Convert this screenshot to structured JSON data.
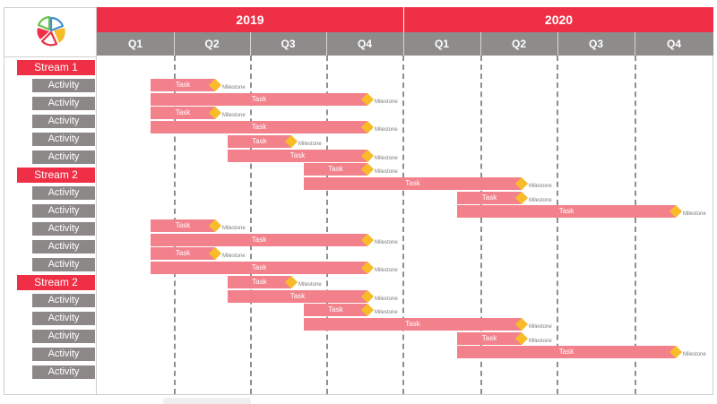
{
  "timeline": {
    "years": [
      "2019",
      "2020"
    ],
    "quarters": [
      "Q1",
      "Q2",
      "Q3",
      "Q4",
      "Q1",
      "Q2",
      "Q3",
      "Q4"
    ]
  },
  "logo": {
    "icon": "pie-chart-logo",
    "colors": [
      "#ee2f46",
      "#f8bc2a",
      "#3f8fd2",
      "#6cc04a"
    ]
  },
  "colors": {
    "accent": "#ee2f46",
    "row_label": "#8c8888",
    "task_bar": "#f2818c",
    "milestone": "#f8bc2a"
  },
  "rows": [
    {
      "type": "stream",
      "label": "Stream 1"
    },
    {
      "type": "activity",
      "label": "Activity"
    },
    {
      "type": "activity",
      "label": "Activity"
    },
    {
      "type": "activity",
      "label": "Activity"
    },
    {
      "type": "activity",
      "label": "Activity"
    },
    {
      "type": "activity",
      "label": "Activity"
    },
    {
      "type": "stream",
      "label": "Stream 2"
    },
    {
      "type": "activity",
      "label": "Activity"
    },
    {
      "type": "activity",
      "label": "Activity"
    },
    {
      "type": "activity",
      "label": "Activity"
    },
    {
      "type": "activity",
      "label": "Activity"
    },
    {
      "type": "activity",
      "label": "Activity"
    },
    {
      "type": "stream",
      "label": "Stream 2"
    },
    {
      "type": "activity",
      "label": "Activity"
    },
    {
      "type": "activity",
      "label": "Activity"
    },
    {
      "type": "activity",
      "label": "Activity"
    },
    {
      "type": "activity",
      "label": "Activity"
    },
    {
      "type": "activity",
      "label": "Activity"
    }
  ],
  "tasks": [
    {
      "label": "Task",
      "milestone": "Milestone",
      "start": "2019 Q1",
      "end": "2019 Q2"
    },
    {
      "label": "Task",
      "milestone": "Milestone",
      "start": "2019 Q1",
      "end": "2019 Q4"
    },
    {
      "label": "Task",
      "milestone": "Milestone",
      "start": "2019 Q1",
      "end": "2019 Q2"
    },
    {
      "label": "Task",
      "milestone": "Milestone",
      "start": "2019 Q1",
      "end": "2019 Q4"
    },
    {
      "label": "Task",
      "milestone": "Milestone",
      "start": "2019 Q2",
      "end": "2019 Q3"
    },
    {
      "label": "Task",
      "milestone": "Milestone",
      "start": "2019 Q2",
      "end": "2019 Q4"
    },
    {
      "label": "Task",
      "milestone": "Milestone",
      "start": "2019 Q3",
      "end": "2019 Q4"
    },
    {
      "label": "Task",
      "milestone": "Milestone",
      "start": "2019 Q3",
      "end": "2020 Q2"
    },
    {
      "label": "Task",
      "milestone": "Milestone",
      "start": "2020 Q1",
      "end": "2020 Q2"
    },
    {
      "label": "Task",
      "milestone": "Milestone",
      "start": "2020 Q1",
      "end": "2020 Q4"
    },
    {
      "label": "Task",
      "milestone": "Milestone",
      "start": "2019 Q1",
      "end": "2019 Q2"
    },
    {
      "label": "Task",
      "milestone": "Milestone",
      "start": "2019 Q1",
      "end": "2019 Q4"
    },
    {
      "label": "Task",
      "milestone": "Milestone",
      "start": "2019 Q1",
      "end": "2019 Q2"
    },
    {
      "label": "Task",
      "milestone": "Milestone",
      "start": "2019 Q1",
      "end": "2019 Q4"
    },
    {
      "label": "Task",
      "milestone": "Milestone",
      "start": "2019 Q2",
      "end": "2019 Q3"
    },
    {
      "label": "Task",
      "milestone": "Milestone",
      "start": "2019 Q2",
      "end": "2019 Q4"
    },
    {
      "label": "Task",
      "milestone": "Milestone",
      "start": "2019 Q3",
      "end": "2019 Q4"
    },
    {
      "label": "Task",
      "milestone": "Milestone",
      "start": "2019 Q3",
      "end": "2020 Q2"
    },
    {
      "label": "Task",
      "milestone": "Milestone",
      "start": "2020 Q1",
      "end": "2020 Q2"
    },
    {
      "label": "Task",
      "milestone": "Milestone",
      "start": "2020 Q1",
      "end": "2020 Q4"
    }
  ]
}
